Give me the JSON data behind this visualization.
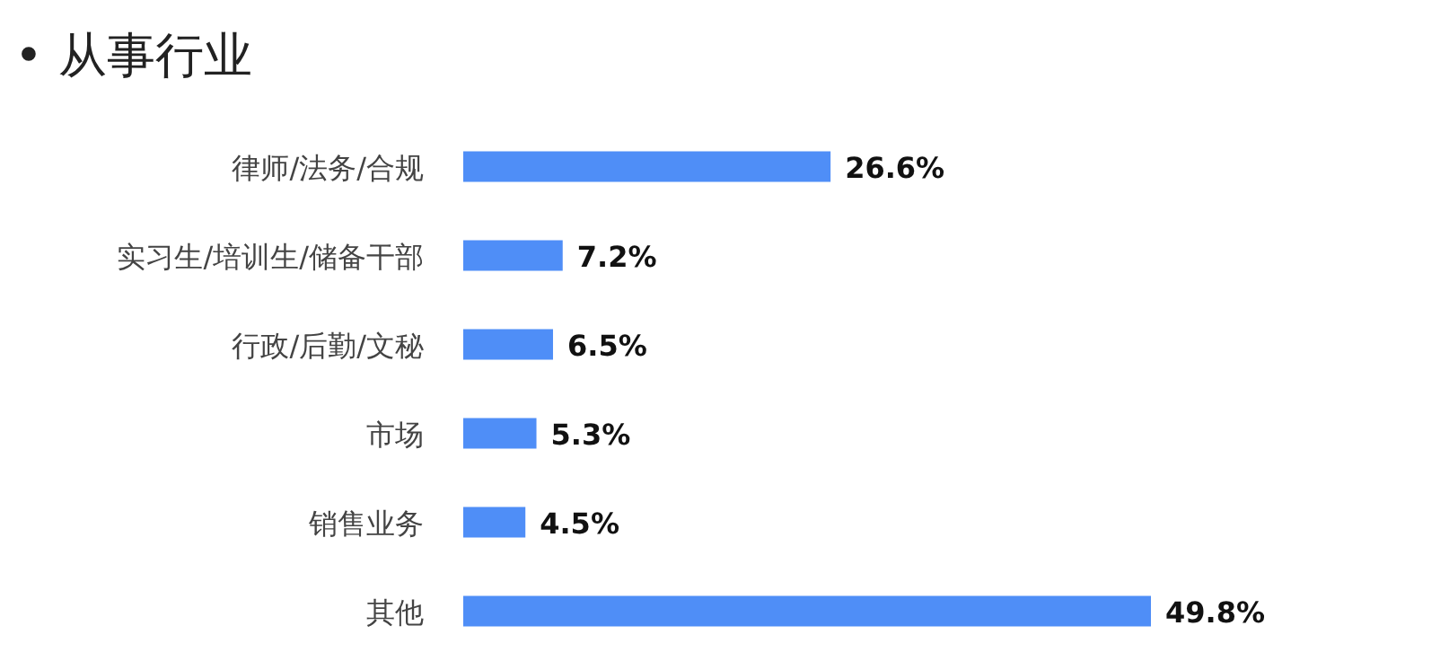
{
  "chart_data": {
    "type": "bar",
    "orientation": "horizontal",
    "title": "• 从事行业",
    "categories": [
      "律师/法务/合规",
      "实习生/培训生/储备干部",
      "行政/后勤/文秘",
      "市场",
      "销售业务",
      "其他"
    ],
    "values": [
      26.6,
      7.2,
      6.5,
      5.3,
      4.5,
      49.8
    ],
    "value_labels": [
      "26.6%",
      "7.2%",
      "6.5%",
      "5.3%",
      "4.5%",
      "49.8%"
    ],
    "color": "#4f8ef7"
  }
}
